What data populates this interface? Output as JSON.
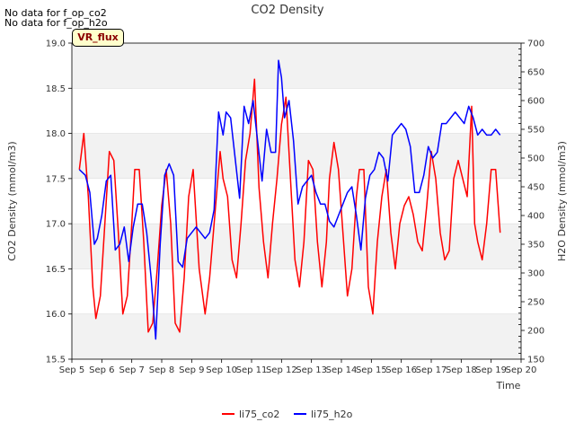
{
  "notes": [
    "No data for f_op_co2",
    "No data for f_op_h2o"
  ],
  "badge": "VR_flux",
  "chart_data": {
    "type": "line",
    "title": "CO2 Density",
    "xlabel": "Time",
    "ylabel": "CO2 Density (mmol/m3)",
    "y2label": "H2O Density (mmol/m3)",
    "xlim": [
      5,
      20
    ],
    "ylim": [
      15.5,
      19.0
    ],
    "y2lim": [
      150,
      700
    ],
    "x_ticks": [
      5,
      6,
      7,
      8,
      9,
      10,
      11,
      12,
      13,
      14,
      15,
      16,
      17,
      18,
      19,
      20
    ],
    "x_tick_labels": [
      "Sep 5",
      "Sep 6",
      "Sep 7",
      "Sep 8",
      "Sep 9",
      "Sep 10",
      "Sep 11",
      "Sep 12",
      "Sep 13",
      "Sep 14",
      "Sep 15",
      "Sep 16",
      "Sep 17",
      "Sep 18",
      "Sep 19",
      "Sep 20"
    ],
    "y_ticks": [
      15.5,
      16.0,
      16.5,
      17.0,
      17.5,
      18.0,
      18.5,
      19.0
    ],
    "y_tick_labels": [
      "15.5",
      "16.0",
      "16.5",
      "17.0",
      "17.5",
      "18.0",
      "18.5",
      "19.0"
    ],
    "y2_ticks": [
      150,
      200,
      250,
      300,
      350,
      400,
      450,
      500,
      550,
      600,
      650,
      700
    ],
    "y2_tick_labels": [
      "150",
      "200",
      "250",
      "300",
      "350",
      "400",
      "450",
      "500",
      "550",
      "600",
      "650",
      "700"
    ],
    "legend_position": "bottom-center",
    "series": [
      {
        "name": "li75_co2",
        "color": "#ff0000",
        "axis": "left",
        "x": [
          5.25,
          5.4,
          5.55,
          5.7,
          5.8,
          5.95,
          6.1,
          6.25,
          6.4,
          6.55,
          6.7,
          6.85,
          7.0,
          7.1,
          7.25,
          7.4,
          7.55,
          7.7,
          7.85,
          8.0,
          8.15,
          8.3,
          8.45,
          8.6,
          8.75,
          8.9,
          9.05,
          9.25,
          9.45,
          9.6,
          9.8,
          9.95,
          10.05,
          10.2,
          10.35,
          10.5,
          10.65,
          10.8,
          10.95,
          11.1,
          11.25,
          11.4,
          11.55,
          11.7,
          11.85,
          12.0,
          12.15,
          12.3,
          12.45,
          12.6,
          12.75,
          12.9,
          13.05,
          13.2,
          13.35,
          13.5,
          13.6,
          13.75,
          13.9,
          14.05,
          14.2,
          14.35,
          14.5,
          14.6,
          14.75,
          14.9,
          15.05,
          15.2,
          15.35,
          15.5,
          15.65,
          15.8,
          15.95,
          16.1,
          16.25,
          16.4,
          16.55,
          16.7,
          16.85,
          17.0,
          17.15,
          17.3,
          17.45,
          17.6,
          17.75,
          17.9,
          18.05,
          18.2,
          18.35,
          18.45,
          18.55,
          18.7,
          18.85,
          19.0,
          19.15,
          19.3
        ],
        "y": [
          17.6,
          18.0,
          17.3,
          16.3,
          15.95,
          16.2,
          17.0,
          17.8,
          17.7,
          16.9,
          16.0,
          16.2,
          17.0,
          17.6,
          17.6,
          16.8,
          15.8,
          15.9,
          16.5,
          17.2,
          17.6,
          17.0,
          15.9,
          15.8,
          16.4,
          17.3,
          17.6,
          16.5,
          16.0,
          16.4,
          17.2,
          17.8,
          17.5,
          17.3,
          16.6,
          16.4,
          17.0,
          17.7,
          18.0,
          18.6,
          17.4,
          16.8,
          16.4,
          17.0,
          17.5,
          18.1,
          18.4,
          17.5,
          16.6,
          16.3,
          16.8,
          17.7,
          17.6,
          16.8,
          16.3,
          16.8,
          17.5,
          17.9,
          17.6,
          16.9,
          16.2,
          16.5,
          17.3,
          17.6,
          17.6,
          16.3,
          16.0,
          16.8,
          17.3,
          17.6,
          16.9,
          16.5,
          17.0,
          17.2,
          17.3,
          17.1,
          16.8,
          16.7,
          17.2,
          17.8,
          17.5,
          16.9,
          16.6,
          16.7,
          17.5,
          17.7,
          17.5,
          17.3,
          18.3,
          17.0,
          16.8,
          16.6,
          17.0,
          17.6,
          17.6,
          16.9
        ],
        "linewidth": 1.5
      },
      {
        "name": "li75_h2o",
        "color": "#0000ff",
        "axis": "right",
        "x": [
          5.25,
          5.45,
          5.6,
          5.75,
          5.85,
          6.0,
          6.15,
          6.3,
          6.45,
          6.6,
          6.75,
          6.9,
          7.05,
          7.2,
          7.35,
          7.5,
          7.65,
          7.8,
          7.95,
          8.1,
          8.25,
          8.4,
          8.55,
          8.7,
          8.85,
          9.0,
          9.15,
          9.3,
          9.45,
          9.6,
          9.75,
          9.9,
          10.05,
          10.15,
          10.3,
          10.45,
          10.6,
          10.75,
          10.9,
          11.05,
          11.2,
          11.35,
          11.5,
          11.65,
          11.8,
          11.9,
          12.0,
          12.1,
          12.25,
          12.4,
          12.55,
          12.7,
          12.85,
          13.0,
          13.15,
          13.3,
          13.45,
          13.6,
          13.75,
          13.9,
          14.05,
          14.2,
          14.35,
          14.5,
          14.65,
          14.8,
          14.95,
          15.1,
          15.25,
          15.4,
          15.55,
          15.7,
          15.85,
          16.0,
          16.15,
          16.3,
          16.45,
          16.6,
          16.75,
          16.9,
          17.05,
          17.2,
          17.35,
          17.5,
          17.65,
          17.8,
          17.95,
          18.1,
          18.25,
          18.4,
          18.55,
          18.7,
          18.85,
          19.0,
          19.15,
          19.3
        ],
        "y": [
          480,
          470,
          440,
          350,
          360,
          400,
          460,
          470,
          340,
          350,
          380,
          320,
          380,
          420,
          420,
          370,
          290,
          185,
          350,
          470,
          490,
          470,
          320,
          310,
          360,
          370,
          380,
          370,
          360,
          370,
          410,
          580,
          540,
          580,
          570,
          500,
          430,
          590,
          560,
          600,
          530,
          460,
          550,
          510,
          510,
          670,
          640,
          570,
          600,
          530,
          420,
          450,
          460,
          470,
          440,
          420,
          420,
          390,
          380,
          400,
          420,
          440,
          450,
          400,
          340,
          430,
          470,
          480,
          510,
          500,
          460,
          540,
          550,
          560,
          550,
          520,
          440,
          440,
          470,
          520,
          500,
          510,
          560,
          560,
          570,
          580,
          570,
          560,
          590,
          570,
          540,
          550,
          540,
          540,
          550,
          540
        ],
        "linewidth": 1.5
      }
    ]
  }
}
